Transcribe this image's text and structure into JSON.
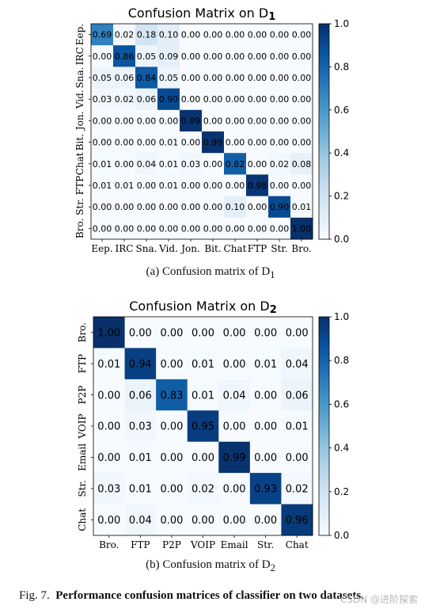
{
  "chart_data": [
    {
      "type": "heatmap",
      "title_prefix": "Confusion Matrix on D",
      "title_subscript": "1",
      "row_labels": [
        "Eep.",
        "IRC",
        "Sna.",
        "Vid.",
        "Jon.",
        "Bit.",
        "Chat",
        "FTP",
        "Str.",
        "Bro."
      ],
      "col_labels": [
        "Eep.",
        "IRC",
        "Sna.",
        "Vid.",
        "Jon.",
        "Bit.",
        "Chat",
        "FTP",
        "Str.",
        "Bro."
      ],
      "values": [
        [
          0.69,
          0.02,
          0.18,
          0.1,
          0.0,
          0.0,
          0.0,
          0.0,
          0.0,
          0.0
        ],
        [
          0.0,
          0.86,
          0.05,
          0.09,
          0.0,
          0.0,
          0.0,
          0.0,
          0.0,
          0.0
        ],
        [
          0.05,
          0.06,
          0.84,
          0.05,
          0.0,
          0.0,
          0.0,
          0.0,
          0.0,
          0.0
        ],
        [
          0.03,
          0.02,
          0.06,
          0.9,
          0.0,
          0.0,
          0.0,
          0.0,
          0.0,
          0.0
        ],
        [
          0.0,
          0.0,
          0.0,
          0.0,
          0.99,
          0.0,
          0.0,
          0.0,
          0.0,
          0.0
        ],
        [
          0.0,
          0.0,
          0.0,
          0.01,
          0.0,
          0.99,
          0.0,
          0.0,
          0.0,
          0.0
        ],
        [
          0.01,
          0.0,
          0.04,
          0.01,
          0.03,
          0.0,
          0.82,
          0.0,
          0.02,
          0.08
        ],
        [
          0.01,
          0.01,
          0.0,
          0.01,
          0.0,
          0.0,
          0.0,
          0.98,
          0.0,
          0.0
        ],
        [
          0.0,
          0.0,
          0.0,
          0.0,
          0.0,
          0.0,
          0.1,
          0.0,
          0.9,
          0.01
        ],
        [
          0.0,
          0.0,
          0.0,
          0.0,
          0.0,
          0.0,
          0.0,
          0.0,
          0.0,
          1.0
        ]
      ],
      "value_range": [
        0.0,
        1.0
      ],
      "colorbar_ticks": [
        "0.0",
        "0.2",
        "0.4",
        "0.6",
        "0.8",
        "1.0"
      ],
      "colormap": "Blues",
      "grid": false
    },
    {
      "type": "heatmap",
      "title_prefix": "Confusion Matrix on D",
      "title_subscript": "2",
      "row_labels": [
        "Bro.",
        "FTP",
        "P2P",
        "VOIP",
        "Email",
        "Str.",
        "Chat"
      ],
      "col_labels": [
        "Bro.",
        "FTP",
        "P2P",
        "VOIP",
        "Email",
        "Str.",
        "Chat"
      ],
      "values": [
        [
          1.0,
          0.0,
          0.0,
          0.0,
          0.0,
          0.0,
          0.0
        ],
        [
          0.01,
          0.94,
          0.0,
          0.01,
          0.0,
          0.01,
          0.04
        ],
        [
          0.0,
          0.06,
          0.83,
          0.01,
          0.04,
          0.0,
          0.06
        ],
        [
          0.0,
          0.03,
          0.0,
          0.95,
          0.0,
          0.0,
          0.01
        ],
        [
          0.0,
          0.01,
          0.0,
          0.0,
          0.99,
          0.0,
          0.0
        ],
        [
          0.03,
          0.01,
          0.0,
          0.02,
          0.0,
          0.93,
          0.02
        ],
        [
          0.0,
          0.04,
          0.0,
          0.0,
          0.0,
          0.0,
          0.96
        ]
      ],
      "value_range": [
        0.0,
        1.0
      ],
      "colorbar_ticks": [
        "0.0",
        "0.2",
        "0.4",
        "0.6",
        "0.8",
        "1.0"
      ],
      "colormap": "Blues",
      "grid": false
    }
  ],
  "captions": {
    "sub_a": "(a)  Confusion matrix of D",
    "sub_a_sub": "1",
    "sub_b": "(b)  Confusion matrix of D",
    "sub_b_sub": "2",
    "fig_label": "Fig. 7.",
    "fig_text": "Performance confusion matrices of classifier on two datasets."
  },
  "watermark": "CSDN @进阶探索",
  "colors": {
    "low": "#f7fbff",
    "high": "#08306b"
  }
}
